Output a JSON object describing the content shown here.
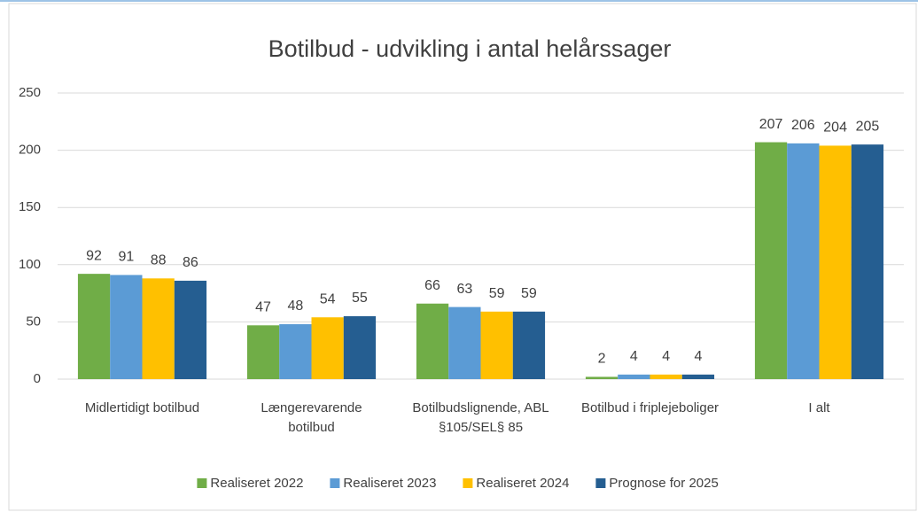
{
  "chart_data": {
    "type": "bar",
    "title": "Botilbud - udvikling i antal helårssager",
    "categories": [
      "Midlertidigt botilbud",
      "Længerevarende botilbud",
      "Botilbudslignende, ABL §105/SEL§ 85",
      "Botilbud i friplejeboliger",
      "I alt"
    ],
    "series": [
      {
        "name": "Realiseret 2022",
        "color": "#70ad47",
        "values": [
          92,
          47,
          66,
          2,
          207
        ]
      },
      {
        "name": "Realiseret 2023",
        "color": "#5b9bd5",
        "values": [
          91,
          48,
          63,
          4,
          206
        ]
      },
      {
        "name": "Realiseret 2024",
        "color": "#ffc000",
        "values": [
          88,
          54,
          59,
          4,
          204
        ]
      },
      {
        "name": "Prognose for 2025",
        "color": "#255e91",
        "values": [
          86,
          55,
          59,
          4,
          205
        ]
      }
    ],
    "ylim": [
      0,
      250
    ],
    "yticks": [
      0,
      50,
      100,
      150,
      200,
      250
    ],
    "grid": true,
    "legend": "bottom"
  }
}
